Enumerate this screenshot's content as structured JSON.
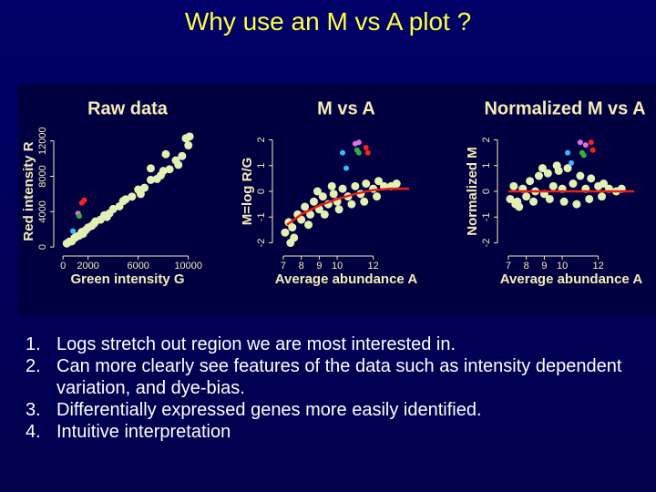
{
  "title": "Why use an M vs A  plot ?",
  "chart_data": [
    {
      "type": "scatter",
      "title": "Raw data",
      "xlabel": "Green intensity G",
      "ylabel": "Red intensity R",
      "xlim": [
        -300,
        10600
      ],
      "ylim": [
        -400,
        13000
      ],
      "xticks": [
        0,
        2000,
        6000,
        10000
      ],
      "yticks": [
        0,
        4000,
        8000,
        12000
      ],
      "series": [
        {
          "color": "#e4efb4",
          "x": [
            300,
            500,
            700,
            900,
            1100,
            1300,
            1500,
            1800,
            2000,
            2300,
            2600,
            3000,
            3300,
            3700,
            4000,
            4500,
            5000,
            5500,
            6000,
            6500,
            7000,
            7500,
            8000,
            8500,
            9000,
            9500,
            10000,
            2500,
            3500,
            4800,
            6200,
            7800,
            9200,
            1000,
            1600,
            9800,
            10100,
            8200,
            7000
          ],
          "values": [
            400,
            600,
            650,
            1000,
            1200,
            1300,
            1700,
            1900,
            2200,
            2400,
            2900,
            3100,
            3600,
            3800,
            4300,
            4600,
            5400,
            5700,
            6500,
            6700,
            7600,
            7700,
            8600,
            8800,
            9800,
            10300,
            11500,
            2700,
            3400,
            5200,
            6000,
            8100,
            9300,
            1100,
            1500,
            12300,
            12500,
            10500,
            8900
          ]
        },
        {
          "color": "#ff2020",
          "x": [
            1500,
            1700
          ],
          "values": [
            5000,
            5300
          ]
        },
        {
          "color": "#e070e0",
          "x": [
            1200
          ],
          "values": [
            3800
          ]
        },
        {
          "color": "#30b040",
          "x": [
            1300
          ],
          "values": [
            3500
          ]
        },
        {
          "color": "#30c0ff",
          "x": [
            800
          ],
          "values": [
            1800
          ]
        }
      ]
    },
    {
      "type": "scatter",
      "title": "M vs A",
      "xlabel": "Average abundance A",
      "ylabel": "M=log R/G",
      "xlim": [
        6.7,
        14.3
      ],
      "ylim": [
        -2.3,
        2.3
      ],
      "xticks": [
        7,
        8,
        9,
        10,
        12
      ],
      "yticks": [
        -2,
        -1,
        0,
        1,
        2
      ],
      "series": [
        {
          "color": "#e4efb4",
          "x": [
            7.1,
            7.3,
            7.5,
            7.8,
            8.0,
            8.2,
            8.5,
            8.7,
            9.0,
            9.2,
            9.5,
            9.8,
            10.0,
            10.3,
            10.6,
            11.0,
            11.3,
            11.6,
            12.0,
            12.3,
            12.6,
            13.0,
            7.6,
            8.4,
            9.3,
            10.1,
            10.8,
            11.5,
            12.2,
            8.9,
            9.7,
            7.4,
            13.3
          ],
          "values": [
            -1.6,
            -1.2,
            -1.4,
            -0.9,
            -1.1,
            -0.6,
            -0.9,
            -0.4,
            -0.7,
            -0.2,
            -0.5,
            -0.1,
            -0.4,
            0.1,
            -0.2,
            0.2,
            -0.1,
            0.3,
            0.1,
            0.4,
            0.2,
            0.2,
            -1.8,
            -1.3,
            -0.9,
            -0.7,
            -0.5,
            -0.4,
            -0.2,
            0.0,
            0.2,
            -2.0,
            0.3
          ]
        },
        {
          "type": "line",
          "color": "#e82010",
          "x": [
            7.2,
            8,
            9,
            10,
            11,
            12,
            13,
            14
          ],
          "values": [
            -1.3,
            -0.9,
            -0.55,
            -0.3,
            -0.1,
            0.05,
            0.1,
            0.1
          ]
        },
        {
          "color": "#30c0ff",
          "x": [
            10.3,
            10.5
          ],
          "values": [
            1.5,
            0.9
          ]
        },
        {
          "color": "#e070e0",
          "x": [
            11.0,
            11.2
          ],
          "values": [
            1.85,
            1.9
          ]
        },
        {
          "color": "#30b040",
          "x": [
            11.1,
            11.2
          ],
          "values": [
            1.6,
            1.5
          ]
        },
        {
          "color": "#ff2020",
          "x": [
            11.6,
            11.7
          ],
          "values": [
            1.7,
            1.5
          ]
        }
      ]
    },
    {
      "type": "scatter",
      "title": "Normalized M vs A",
      "xlabel": "Average abundance A",
      "ylabel": "Normalized M",
      "xlim": [
        6.7,
        14.3
      ],
      "ylim": [
        -2.3,
        2.3
      ],
      "xticks": [
        7,
        8,
        9,
        10,
        12
      ],
      "yticks": [
        -2,
        -1,
        0,
        1,
        2
      ],
      "series": [
        {
          "color": "#e4efb4",
          "x": [
            7.1,
            7.3,
            7.5,
            7.8,
            8.0,
            8.2,
            8.5,
            8.7,
            9.0,
            9.2,
            9.5,
            9.8,
            10.0,
            10.3,
            10.6,
            11.0,
            11.3,
            11.6,
            12.0,
            12.3,
            12.6,
            13.0,
            7.6,
            8.4,
            9.3,
            10.1,
            10.8,
            11.5,
            12.2,
            8.9,
            9.7,
            7.4,
            13.3
          ],
          "values": [
            -0.3,
            0.2,
            -0.4,
            0.1,
            -0.2,
            0.4,
            0,
            0.6,
            -0.1,
            0.7,
            0.2,
            0.8,
            0.1,
            0.9,
            0.3,
            0.6,
            0.1,
            0.5,
            0.2,
            0.3,
            0.1,
            0.0,
            -0.6,
            -0.4,
            -0.3,
            -0.4,
            -0.5,
            -0.3,
            -0.2,
            0.9,
            1.0,
            -0.5,
            0.1
          ]
        },
        {
          "type": "line",
          "color": "#e82010",
          "x": [
            7,
            14
          ],
          "values": [
            0,
            0
          ]
        },
        {
          "color": "#30c0ff",
          "x": [
            10.3,
            10.5
          ],
          "values": [
            1.5,
            1.1
          ]
        },
        {
          "color": "#e070e0",
          "x": [
            11.0,
            11.3
          ],
          "values": [
            1.9,
            1.8
          ]
        },
        {
          "color": "#30b040",
          "x": [
            11.1,
            11.2
          ],
          "values": [
            1.5,
            1.4
          ]
        },
        {
          "color": "#ff2020",
          "x": [
            11.6,
            11.7
          ],
          "values": [
            1.9,
            1.6
          ]
        }
      ]
    }
  ],
  "bullets": [
    {
      "number": "1.",
      "text": "Logs stretch out region we are most interested in."
    },
    {
      "number": "2.",
      "text": "Can more clearly see features of the data such as intensity dependent variation, and dye-bias."
    },
    {
      "number": "3.",
      "text": "Differentially expressed genes more easily identified."
    },
    {
      "number": "4.",
      "text": "Intuitive interpretation"
    }
  ]
}
